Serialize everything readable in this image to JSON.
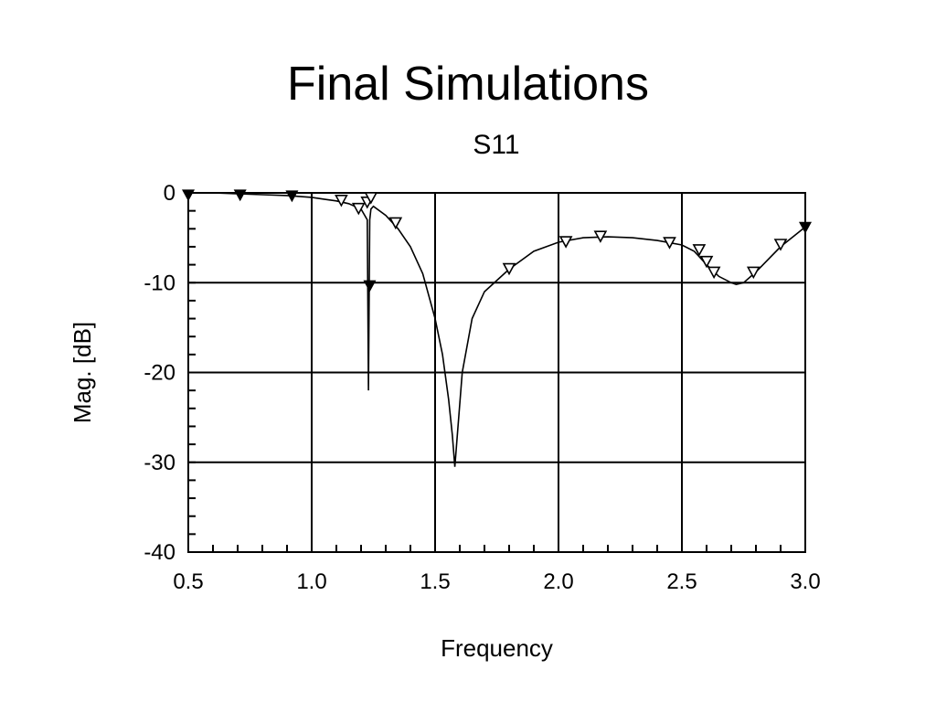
{
  "slide": {
    "title": "Final Simulations"
  },
  "chart_data": {
    "type": "line",
    "title": "S11",
    "xlabel": "Frequency",
    "ylabel": "Mag. [dB]",
    "xlim": [
      0.5,
      3.0
    ],
    "ylim": [
      -40,
      0
    ],
    "x_ticks": [
      "0.5",
      "1.0",
      "1.5",
      "2.0",
      "2.5",
      "3.0"
    ],
    "y_ticks": [
      "0",
      "-10",
      "-20",
      "-30",
      "-40"
    ],
    "grid": true,
    "series": [
      {
        "x": [
          0.5,
          0.6,
          0.7,
          0.8,
          0.9,
          1.0,
          1.05,
          1.1,
          1.15,
          1.2,
          1.225,
          1.23,
          1.235,
          1.24,
          1.25,
          1.3,
          1.35,
          1.4,
          1.45,
          1.5,
          1.53,
          1.555,
          1.57,
          1.58,
          1.59,
          1.61,
          1.65,
          1.7,
          1.8,
          1.9,
          2.0,
          2.1,
          2.2,
          2.3,
          2.4,
          2.5,
          2.55,
          2.6,
          2.65,
          2.7,
          2.72,
          2.75,
          2.8,
          2.9,
          3.0
        ],
        "y": [
          0,
          0,
          -0.1,
          -0.2,
          -0.3,
          -0.5,
          -0.7,
          -0.9,
          -1.2,
          -1.8,
          -3,
          -22,
          -3,
          -1.8,
          -1.5,
          -2.5,
          -4,
          -6,
          -9,
          -14,
          -18,
          -23,
          -27,
          -30.5,
          -27,
          -20,
          -14,
          -11,
          -8.5,
          -6.5,
          -5.5,
          -5,
          -4.9,
          -5,
          -5.3,
          -5.8,
          -6.5,
          -8,
          -9.3,
          -10,
          -10.2,
          -10,
          -8.8,
          -6,
          -3.8
        ]
      }
    ],
    "markers": {
      "filled": [
        {
          "x": 0.5,
          "y": -0.2
        },
        {
          "x": 0.71,
          "y": -0.2
        },
        {
          "x": 0.92,
          "y": -0.3
        },
        {
          "x": 1.235,
          "y": -10.3
        },
        {
          "x": 3.0,
          "y": -3.8
        }
      ],
      "open": [
        {
          "x": 1.12,
          "y": -0.8
        },
        {
          "x": 1.19,
          "y": -1.7
        },
        {
          "x": 1.225,
          "y": -1.0
        },
        {
          "x": 1.24,
          "y": -0.5
        },
        {
          "x": 1.34,
          "y": -3.3
        },
        {
          "x": 1.8,
          "y": -8.4
        },
        {
          "x": 2.03,
          "y": -5.4
        },
        {
          "x": 2.17,
          "y": -4.8
        },
        {
          "x": 2.45,
          "y": -5.5
        },
        {
          "x": 2.57,
          "y": -6.3
        },
        {
          "x": 2.6,
          "y": -7.6
        },
        {
          "x": 2.63,
          "y": -8.8
        },
        {
          "x": 2.79,
          "y": -8.8
        },
        {
          "x": 2.9,
          "y": -5.7
        }
      ]
    }
  }
}
